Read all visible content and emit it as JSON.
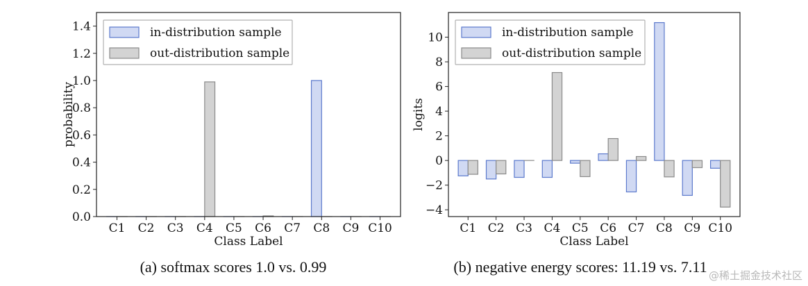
{
  "colors": {
    "in_fill": "#d0d9f3",
    "in_edge": "#5b79cc",
    "out_fill": "#d3d3d3",
    "out_edge": "#8a8a8a"
  },
  "watermark": "@稀土掘金技术社区",
  "chart_data": [
    {
      "type": "bar",
      "title": "",
      "caption": "(a) softmax scores 1.0 vs. 0.99",
      "xlabel": "Class Label",
      "ylabel": "probability",
      "ylim": [
        0,
        1.5
      ],
      "yticks": [
        0.0,
        0.2,
        0.4,
        0.6,
        0.8,
        1.0,
        1.2,
        1.4
      ],
      "ytick_labels": [
        "0.0",
        "0.2",
        "0.4",
        "0.6",
        "0.8",
        "1.0",
        "1.2",
        "1.4"
      ],
      "categories": [
        "C1",
        "C2",
        "C3",
        "C4",
        "C5",
        "C6",
        "C7",
        "C8",
        "C9",
        "C10"
      ],
      "legend_position": "top-left",
      "grid": false,
      "series": [
        {
          "name": "in-distribution sample",
          "values": [
            0,
            0,
            0,
            0,
            0,
            0,
            0,
            1.0,
            0,
            0
          ]
        },
        {
          "name": "out-distribution sample",
          "values": [
            0,
            0,
            0,
            0.99,
            0,
            0.005,
            0,
            0,
            0,
            0
          ]
        }
      ]
    },
    {
      "type": "bar",
      "title": "",
      "caption": "(b) negative energy scores: 11.19 vs. 7.11",
      "xlabel": "Class Label",
      "ylabel": "logits",
      "ylim": [
        -4.55,
        12.0
      ],
      "yticks": [
        -4,
        -2,
        0,
        2,
        4,
        6,
        8,
        10
      ],
      "ytick_labels": [
        "−4",
        "−2",
        "0",
        "2",
        "4",
        "6",
        "8",
        "10"
      ],
      "categories": [
        "C1",
        "C2",
        "C3",
        "C4",
        "C5",
        "C6",
        "C7",
        "C8",
        "C9",
        "C10"
      ],
      "legend_position": "top-left",
      "grid": false,
      "series": [
        {
          "name": "in-distribution sample",
          "values": [
            -1.25,
            -1.5,
            -1.37,
            -1.37,
            -0.22,
            0.54,
            -2.55,
            11.18,
            -2.83,
            -0.63
          ]
        },
        {
          "name": "out-distribution sample",
          "values": [
            -1.12,
            -1.09,
            0.0,
            7.13,
            -1.31,
            1.78,
            0.32,
            -1.33,
            -0.58,
            -3.78
          ]
        }
      ]
    }
  ]
}
